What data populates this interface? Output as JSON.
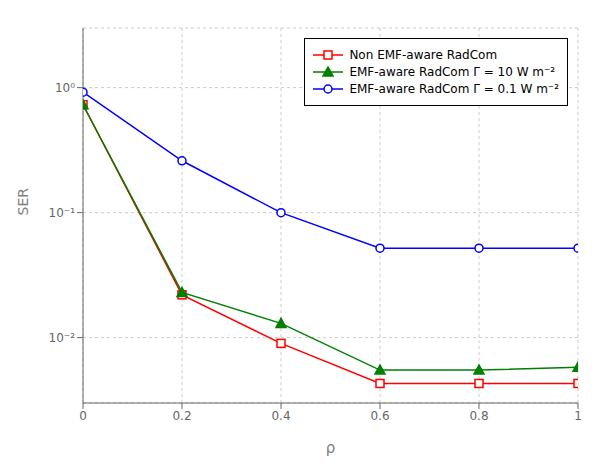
{
  "chart_data": {
    "type": "line",
    "x": [
      0,
      0.2,
      0.4,
      0.6,
      0.8,
      1.0
    ],
    "series": [
      {
        "name": "Non EMF-aware RadCom",
        "color": "#ff0000",
        "marker": "square",
        "values": [
          0.73,
          0.022,
          0.009,
          0.0043,
          0.0043,
          0.0043
        ]
      },
      {
        "name": "EMF-aware RadCom Γ = 10 W m⁻²",
        "color": "#008000",
        "marker": "triangle",
        "values": [
          0.73,
          0.023,
          0.013,
          0.0055,
          0.0055,
          0.0058
        ]
      },
      {
        "name": "EMF-aware RadCom Γ = 0.1 W m⁻²",
        "color": "#0000ff",
        "marker": "circle",
        "values": [
          0.92,
          0.26,
          0.1,
          0.052,
          0.052,
          0.052
        ]
      }
    ],
    "x_label": "ρ",
    "y_label": "SER",
    "log": "y",
    "xlim": [
      0,
      1.0
    ],
    "ylim": [
      0.003,
      3.0
    ],
    "xticks": [
      0,
      0.2,
      0.4,
      0.6,
      0.8,
      1
    ],
    "yticks": [
      {
        "value": 0.01,
        "label": "10⁻²"
      },
      {
        "value": 0.1,
        "label": "10⁻¹"
      },
      {
        "value": 1.0,
        "label": "10⁰"
      }
    ],
    "grid": true,
    "legend": "upper right"
  }
}
